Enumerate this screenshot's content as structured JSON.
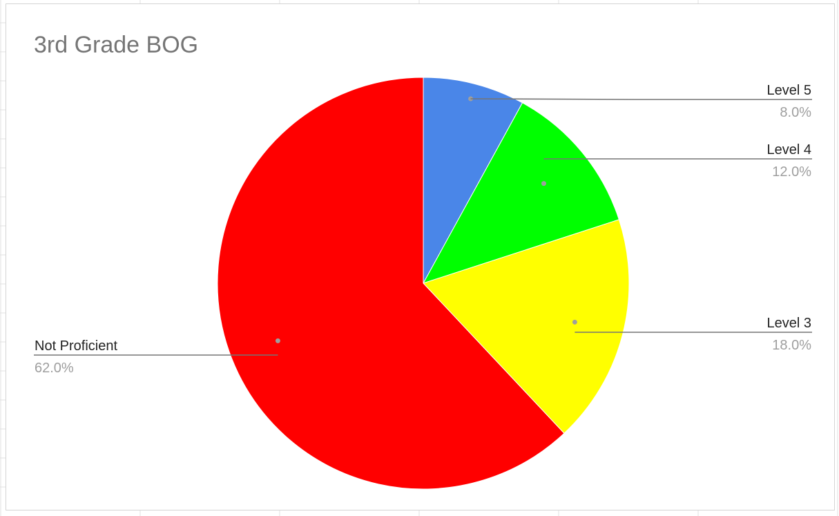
{
  "chart_data": {
    "type": "pie",
    "title": "3rd Grade BOG",
    "slices": [
      {
        "label": "Level 5",
        "value": 8.0,
        "value_label": "8.0%",
        "color": "#4a86e8"
      },
      {
        "label": "Level 4",
        "value": 12.0,
        "value_label": "12.0%",
        "color": "#00ff00"
      },
      {
        "label": "Level 3",
        "value": 18.0,
        "value_label": "18.0%",
        "color": "#ffff00"
      },
      {
        "label": "Not Proficient",
        "value": 62.0,
        "value_label": "62.0%",
        "color": "#ff0000"
      }
    ],
    "start_angle": "12 o'clock",
    "direction": "clockwise",
    "legend": "none",
    "label_style": "leader lines with name and percentage"
  },
  "colors": {
    "title": "#757575",
    "label_name": "#222222",
    "label_value": "#9e9e9e",
    "leader_line": "#757575",
    "grid_line": "#e0e0e0"
  }
}
